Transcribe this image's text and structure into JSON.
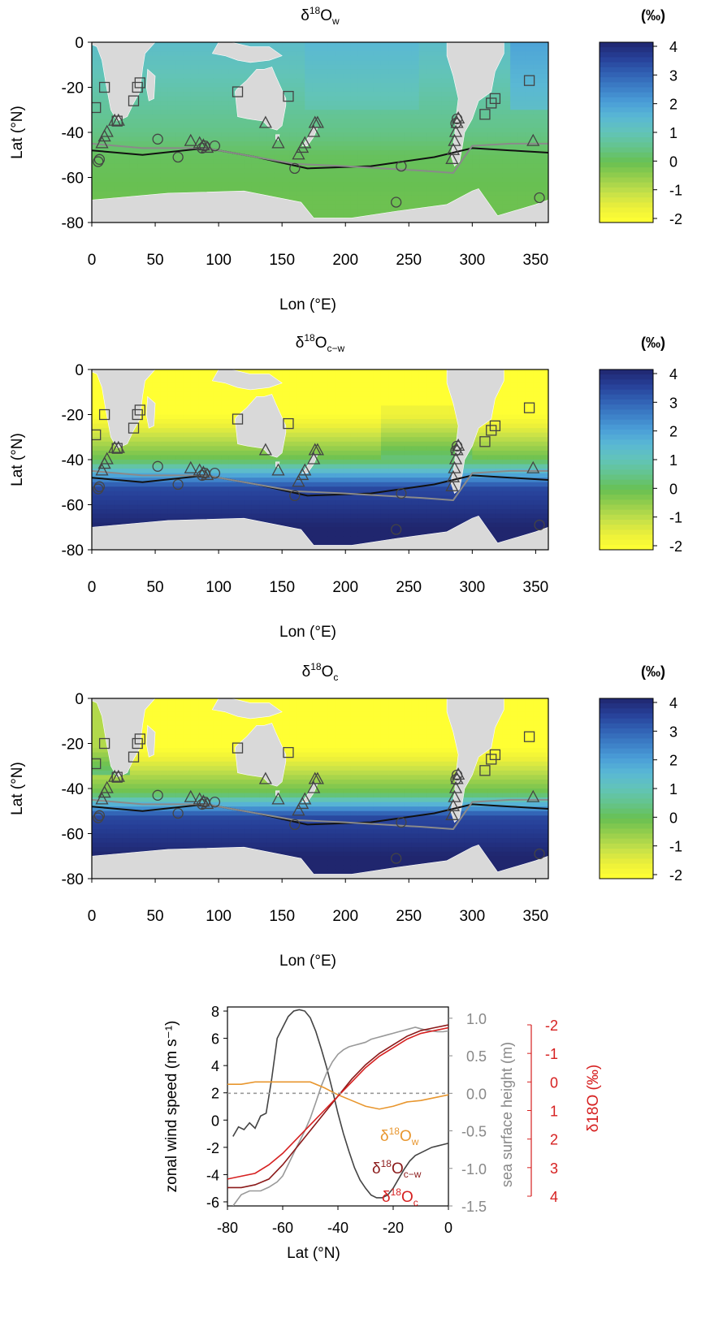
{
  "panels": [
    {
      "title_main": "δ",
      "title_sup": "18",
      "title_rest": "O",
      "title_sub": "w",
      "colorbar": {
        "unit": "(‰)",
        "ticks": [
          "4",
          "3",
          "2",
          "1",
          "0",
          "-1",
          "-2"
        ],
        "reversed": false
      }
    },
    {
      "title_main": "δ",
      "title_sup": "18",
      "title_rest": "O",
      "title_sub": "c−w",
      "colorbar": {
        "unit": "(‰)",
        "ticks": [
          "4",
          "3",
          "2",
          "1",
          "0",
          "-1",
          "-2"
        ],
        "reversed": false
      }
    },
    {
      "title_main": "δ",
      "title_sup": "18",
      "title_rest": "O",
      "title_sub": "c",
      "colorbar": {
        "unit": "(‰)",
        "ticks": [
          "4",
          "3",
          "2",
          "1",
          "0",
          "-1",
          "-2"
        ],
        "reversed": false
      }
    }
  ],
  "map_axes": {
    "xlabel": "Lon (°E)",
    "ylabel": "Lat (°N)",
    "xticks": [
      "0",
      "50",
      "100",
      "150",
      "200",
      "250",
      "300",
      "350"
    ],
    "yticks": [
      "0",
      "-20",
      "-40",
      "-60",
      "-80"
    ]
  },
  "colors": {
    "land": "#d9d9d9",
    "front_black": "#111111",
    "front_gray": "#8a8a8a",
    "orange": "#e8962e",
    "darkred": "#8b1a1a",
    "red": "#d62020",
    "gray_line": "#999999",
    "dark_line": "#444444"
  },
  "chart_data": [
    {
      "type": "heatmap",
      "title": "δ18Ow",
      "xlabel": "Lon (°E)",
      "ylabel": "Lat (°N)",
      "xlim": [
        0,
        360
      ],
      "ylim": [
        -80,
        0
      ],
      "colorbar_range": [
        -2,
        4
      ],
      "markers": {
        "squares": [
          [
            3,
            -29
          ],
          [
            10,
            -20
          ],
          [
            20,
            -35
          ],
          [
            33,
            -26
          ],
          [
            36,
            -20
          ],
          [
            38,
            -18
          ],
          [
            115,
            -22
          ],
          [
            155,
            -24
          ],
          [
            310,
            -32
          ],
          [
            315,
            -27
          ],
          [
            318,
            -25
          ],
          [
            345,
            -17
          ]
        ],
        "triangles": [
          [
            8,
            -45
          ],
          [
            10,
            -42
          ],
          [
            12,
            -40
          ],
          [
            18,
            -35
          ],
          [
            21,
            -35
          ],
          [
            78,
            -44
          ],
          [
            85,
            -45
          ],
          [
            88,
            -46
          ],
          [
            91,
            -47
          ],
          [
            137,
            -36
          ],
          [
            147,
            -45
          ],
          [
            163,
            -50
          ],
          [
            166,
            -47
          ],
          [
            168,
            -45
          ],
          [
            175,
            -40
          ],
          [
            176,
            -36
          ],
          [
            178,
            -36
          ],
          [
            284,
            -52
          ],
          [
            285,
            -48
          ],
          [
            286,
            -44
          ],
          [
            287,
            -40
          ],
          [
            288,
            -36
          ],
          [
            289,
            -34
          ],
          [
            348,
            -44
          ]
        ],
        "circles": [
          [
            5,
            -53
          ],
          [
            6,
            -52
          ],
          [
            52,
            -43
          ],
          [
            68,
            -51
          ],
          [
            87,
            -47
          ],
          [
            89,
            -46
          ],
          [
            97,
            -46
          ],
          [
            160,
            -56
          ],
          [
            240,
            -71
          ],
          [
            244,
            -55
          ],
          [
            287,
            -36
          ],
          [
            288,
            -34
          ],
          [
            353,
            -69
          ]
        ]
      },
      "lines": [
        {
          "color": "front_black",
          "points": [
            [
              0,
              -48
            ],
            [
              40,
              -50
            ],
            [
              90,
              -47
            ],
            [
              130,
              -51
            ],
            [
              170,
              -56
            ],
            [
              220,
              -55
            ],
            [
              270,
              -51
            ],
            [
              300,
              -47
            ],
            [
              330,
              -48
            ],
            [
              360,
              -49
            ]
          ]
        },
        {
          "color": "front_gray",
          "points": [
            [
              0,
              -45
            ],
            [
              40,
              -47
            ],
            [
              90,
              -47
            ],
            [
              130,
              -51
            ],
            [
              160,
              -54
            ],
            [
              200,
              -55
            ],
            [
              260,
              -57
            ],
            [
              285,
              -58
            ],
            [
              300,
              -46
            ],
            [
              330,
              -45
            ],
            [
              360,
              -45
            ]
          ]
        }
      ]
    },
    {
      "type": "heatmap",
      "title": "δ18Oc−w",
      "xlabel": "Lon (°E)",
      "ylabel": "Lat (°N)",
      "xlim": [
        0,
        360
      ],
      "ylim": [
        -80,
        0
      ],
      "colorbar_range": [
        -2,
        4
      ]
    },
    {
      "type": "heatmap",
      "title": "δ18Oc",
      "xlabel": "Lon (°E)",
      "ylabel": "Lat (°N)",
      "xlim": [
        0,
        360
      ],
      "ylim": [
        -80,
        0
      ],
      "colorbar_range": [
        -2,
        4
      ]
    },
    {
      "type": "line",
      "xlabel": "Lat (°N)",
      "ylabel_left": "zonal wind speed (m s⁻¹)",
      "ylabel_mid": "sea surface height (m)",
      "ylabel_right": "δ18O (‰)",
      "xlim": [
        -80,
        0
      ],
      "xticks": [
        "-80",
        "-60",
        "-40",
        "-20",
        "0"
      ],
      "y_left": {
        "lim": [
          -6.3,
          8.3
        ],
        "ticks": [
          "8",
          "6",
          "4",
          "2",
          "0",
          "-2",
          "-4",
          "-6"
        ]
      },
      "y_mid": {
        "lim": [
          -1.5,
          1.15
        ],
        "ticks": [
          "1.0",
          "0.5",
          "0.0",
          "-0.5",
          "-1.0",
          "-1.5"
        ]
      },
      "y_right": {
        "lim": [
          4,
          -2
        ],
        "ticks": [
          "-2",
          "-1",
          "0",
          "1",
          "2",
          "3",
          "4"
        ]
      },
      "labels": {
        "ow": {
          "pre": "δ",
          "sup": "18",
          "mid": "O",
          "sub": "w"
        },
        "ocw": {
          "pre": "δ",
          "sup": "18",
          "mid": "O",
          "sub": "c−w"
        },
        "oc": {
          "pre": "δ",
          "sup": "18",
          "mid": "O",
          "sub": "c"
        }
      },
      "series": [
        {
          "key": "wind",
          "axis": "left",
          "color": "dark_line",
          "x": [
            -78,
            -76,
            -74,
            -72,
            -70,
            -68,
            -66,
            -64,
            -62,
            -60,
            -58,
            -56,
            -54,
            -52,
            -50,
            -48,
            -46,
            -44,
            -42,
            -40,
            -38,
            -36,
            -34,
            -32,
            -30,
            -28,
            -26,
            -24,
            -22,
            -20,
            -18,
            -16,
            -14,
            -12,
            -10,
            -8,
            -6,
            -4,
            -2,
            0
          ],
          "values": [
            -1.2,
            -0.5,
            -0.7,
            -0.2,
            -0.6,
            0.3,
            0.5,
            3,
            6,
            6.8,
            7.6,
            8.0,
            8.1,
            8.0,
            7.5,
            6.5,
            5.2,
            3.8,
            2.2,
            0.5,
            -1.0,
            -2.3,
            -3.5,
            -4.4,
            -5.0,
            -5.5,
            -5.7,
            -5.7,
            -5.5,
            -5.0,
            -4.3,
            -3.6,
            -3.0,
            -2.6,
            -2.4,
            -2.2,
            -2.0,
            -1.9,
            -1.8,
            -1.7
          ]
        },
        {
          "key": "ssh",
          "axis": "mid",
          "color": "gray_line",
          "x": [
            -78,
            -75,
            -72,
            -70,
            -68,
            -65,
            -62,
            -60,
            -58,
            -55,
            -52,
            -50,
            -48,
            -46,
            -44,
            -42,
            -40,
            -38,
            -36,
            -34,
            -32,
            -30,
            -28,
            -26,
            -24,
            -22,
            -20,
            -18,
            -16,
            -14,
            -12,
            -10,
            -8,
            -6,
            -4,
            -2,
            0
          ],
          "values": [
            -1.5,
            -1.35,
            -1.3,
            -1.3,
            -1.3,
            -1.25,
            -1.18,
            -1.1,
            -0.95,
            -0.72,
            -0.5,
            -0.33,
            -0.12,
            0.1,
            0.28,
            0.42,
            0.52,
            0.58,
            0.62,
            0.64,
            0.66,
            0.68,
            0.72,
            0.74,
            0.76,
            0.78,
            0.8,
            0.82,
            0.84,
            0.86,
            0.88,
            0.86,
            0.84,
            0.83,
            0.82,
            0.82,
            0.83
          ]
        },
        {
          "key": "ow",
          "axis": "right",
          "color": "orange",
          "x": [
            -80,
            -75,
            -70,
            -65,
            -60,
            -55,
            -50,
            -45,
            -40,
            -35,
            -30,
            -25,
            -20,
            -15,
            -10,
            -5,
            0
          ],
          "values": [
            0.08,
            0.08,
            0.0,
            0.0,
            0.0,
            0.0,
            0.0,
            0.2,
            0.45,
            0.65,
            0.85,
            0.95,
            0.85,
            0.7,
            0.65,
            0.55,
            0.45
          ]
        },
        {
          "key": "ocw",
          "axis": "right",
          "color": "darkred",
          "x": [
            -80,
            -75,
            -70,
            -65,
            -60,
            -55,
            -50,
            -45,
            -40,
            -35,
            -30,
            -25,
            -20,
            -15,
            -10,
            -5,
            0
          ],
          "values": [
            3.7,
            3.7,
            3.6,
            3.4,
            2.9,
            2.3,
            1.7,
            1.1,
            0.5,
            -0.1,
            -0.6,
            -1.0,
            -1.3,
            -1.6,
            -1.8,
            -1.9,
            -2.0
          ]
        },
        {
          "key": "oc",
          "axis": "right",
          "color": "red",
          "x": [
            -80,
            -75,
            -70,
            -65,
            -60,
            -55,
            -50,
            -45,
            -40,
            -35,
            -30,
            -25,
            -20,
            -15,
            -10,
            -5,
            0
          ],
          "values": [
            3.4,
            3.3,
            3.2,
            2.9,
            2.5,
            2.0,
            1.5,
            1.0,
            0.5,
            0.0,
            -0.5,
            -0.9,
            -1.2,
            -1.5,
            -1.7,
            -1.8,
            -1.9
          ]
        },
        {
          "key": "zero",
          "axis": "mid",
          "color": "gray_line",
          "dashed": true,
          "x": [
            -80,
            0
          ],
          "values": [
            0,
            0
          ]
        }
      ]
    }
  ]
}
